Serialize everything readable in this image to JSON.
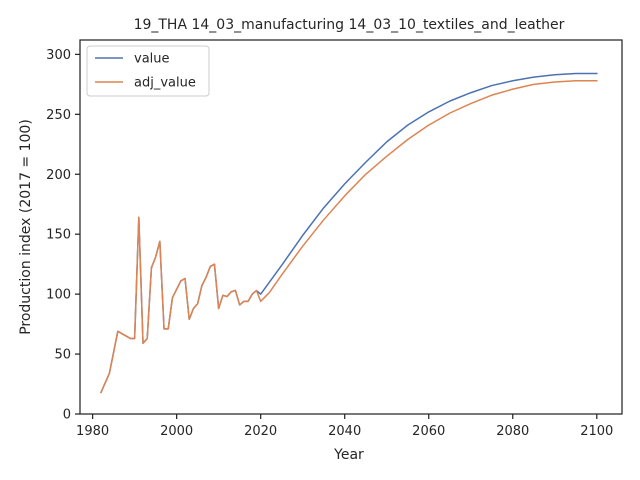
{
  "chart_data": {
    "type": "line",
    "title": "19_THA 14_03_manufacturing 14_03_10_textiles_and_leather",
    "xlabel": "Year",
    "ylabel": "Production index (2017 = 100)",
    "xlim": [
      1977,
      2106
    ],
    "ylim": [
      0,
      312
    ],
    "xticks": [
      1980,
      2000,
      2020,
      2040,
      2060,
      2080,
      2100
    ],
    "yticks": [
      0,
      50,
      100,
      150,
      200,
      250,
      300
    ],
    "grid": false,
    "legend_position": "top-left",
    "series": [
      {
        "name": "value",
        "color": "#4c72b0",
        "x": [
          1982,
          1984,
          1986,
          1988,
          1989,
          1990,
          1991,
          1992,
          1993,
          1994,
          1995,
          1996,
          1997,
          1998,
          1999,
          2000,
          2001,
          2002,
          2003,
          2004,
          2005,
          2006,
          2007,
          2008,
          2009,
          2010,
          2011,
          2012,
          2013,
          2014,
          2015,
          2016,
          2017,
          2018,
          2019,
          2020,
          2025,
          2030,
          2035,
          2040,
          2045,
          2050,
          2055,
          2060,
          2065,
          2070,
          2075,
          2080,
          2085,
          2090,
          2095,
          2100
        ],
        "y": [
          18,
          34,
          69,
          65,
          63,
          63,
          164,
          59,
          63,
          122,
          131,
          144,
          71,
          71,
          97,
          104,
          111,
          113,
          79,
          88,
          92,
          107,
          114,
          123,
          125,
          88,
          99,
          98,
          102,
          103,
          91,
          94,
          94,
          100,
          103,
          100,
          124,
          149,
          172,
          192,
          210,
          227,
          241,
          252,
          261,
          268,
          274,
          278,
          281,
          283,
          284,
          284
        ]
      },
      {
        "name": "adj_value",
        "color": "#dd8452",
        "x": [
          1982,
          1984,
          1986,
          1988,
          1989,
          1990,
          1991,
          1992,
          1993,
          1994,
          1995,
          1996,
          1997,
          1998,
          1999,
          2000,
          2001,
          2002,
          2003,
          2004,
          2005,
          2006,
          2007,
          2008,
          2009,
          2010,
          2011,
          2012,
          2013,
          2014,
          2015,
          2016,
          2017,
          2018,
          2019,
          2020,
          2022,
          2025,
          2030,
          2035,
          2040,
          2045,
          2050,
          2055,
          2060,
          2065,
          2070,
          2075,
          2080,
          2085,
          2090,
          2095,
          2100
        ],
        "y": [
          18,
          34,
          69,
          65,
          63,
          63,
          164,
          59,
          63,
          122,
          131,
          144,
          71,
          71,
          97,
          104,
          111,
          113,
          79,
          88,
          92,
          107,
          114,
          123,
          125,
          88,
          99,
          98,
          102,
          103,
          91,
          94,
          94,
          100,
          103,
          94,
          101,
          116,
          140,
          162,
          182,
          200,
          215,
          229,
          241,
          251,
          259,
          266,
          271,
          275,
          277,
          278,
          278
        ]
      }
    ]
  }
}
